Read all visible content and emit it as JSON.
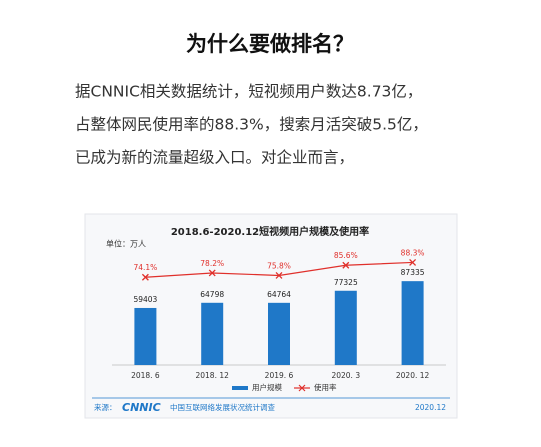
{
  "header": {
    "title": "为什么要做排名？"
  },
  "paragraph": {
    "lines": [
      "据CNNIC相关数据统计，短视频用户数达8.73亿，",
      "占整体网民使用率的88.3%，搜索月活突破5.5亿，",
      "已成为新的流量超级入口。对企业而言，"
    ]
  },
  "chart_data": {
    "type": "bar",
    "title": "2018.6-2020.12短视频用户规模及使用率",
    "unit": "单位：万人",
    "categories": [
      "2018. 6",
      "2018. 12",
      "2019. 6",
      "2020. 3",
      "2020. 12"
    ],
    "series": [
      {
        "name": "用户规模",
        "type": "bar",
        "color": "#1f78c8",
        "values": [
          59403,
          64798,
          64764,
          77325,
          87335
        ]
      },
      {
        "name": "使用率",
        "type": "line",
        "axis": "y2",
        "color": "#e0302b",
        "values": [
          74.1,
          78.2,
          75.8,
          85.6,
          88.3
        ],
        "value_labels": [
          "74.1%",
          "78.2%",
          "75.8%",
          "85.6%",
          "88.3%"
        ]
      }
    ],
    "ylim": [
      0,
      100000
    ],
    "y2lim": [
      -10,
      82
    ],
    "legend": "bottom"
  },
  "footer": {
    "source_label": "来源：",
    "logo": "CNNIC",
    "source": "中国互联网络发展状况统计调查",
    "date": "2020.12"
  }
}
